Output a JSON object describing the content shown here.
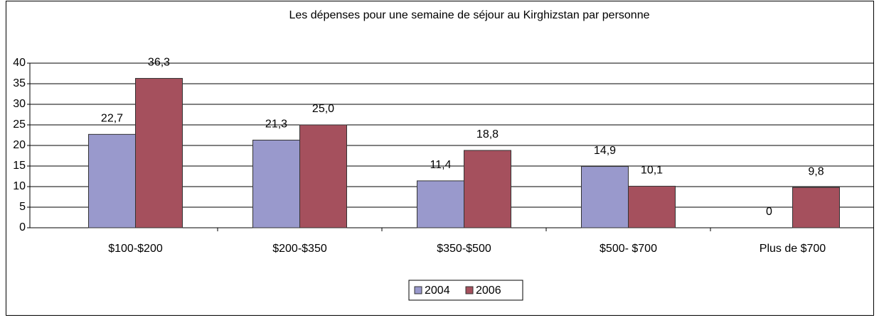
{
  "chart_data": {
    "type": "bar",
    "title": "Les dépenses pour une semaine de séjour au Kirghizstan par personne",
    "categories": [
      "$100-$200",
      "$200-$350",
      "$350-$500",
      "$500- $700",
      "Plus de $700"
    ],
    "series": [
      {
        "name": "2004",
        "color": "#9999cc",
        "values": [
          22.7,
          21.3,
          11.4,
          14.9,
          0
        ],
        "value_labels": [
          "22,7",
          "21,3",
          "11,4",
          "14,9",
          "0"
        ]
      },
      {
        "name": "2006",
        "color": "#a5505d",
        "values": [
          36.3,
          25.0,
          18.8,
          10.1,
          9.8
        ],
        "value_labels": [
          "36,3",
          "25,0",
          "18,8",
          "10,1",
          "9,8"
        ]
      }
    ],
    "ylim": [
      0,
      40
    ],
    "yticks": [
      0,
      5,
      10,
      15,
      20,
      25,
      30,
      35,
      40
    ],
    "grid": true,
    "legend": "bottom"
  }
}
